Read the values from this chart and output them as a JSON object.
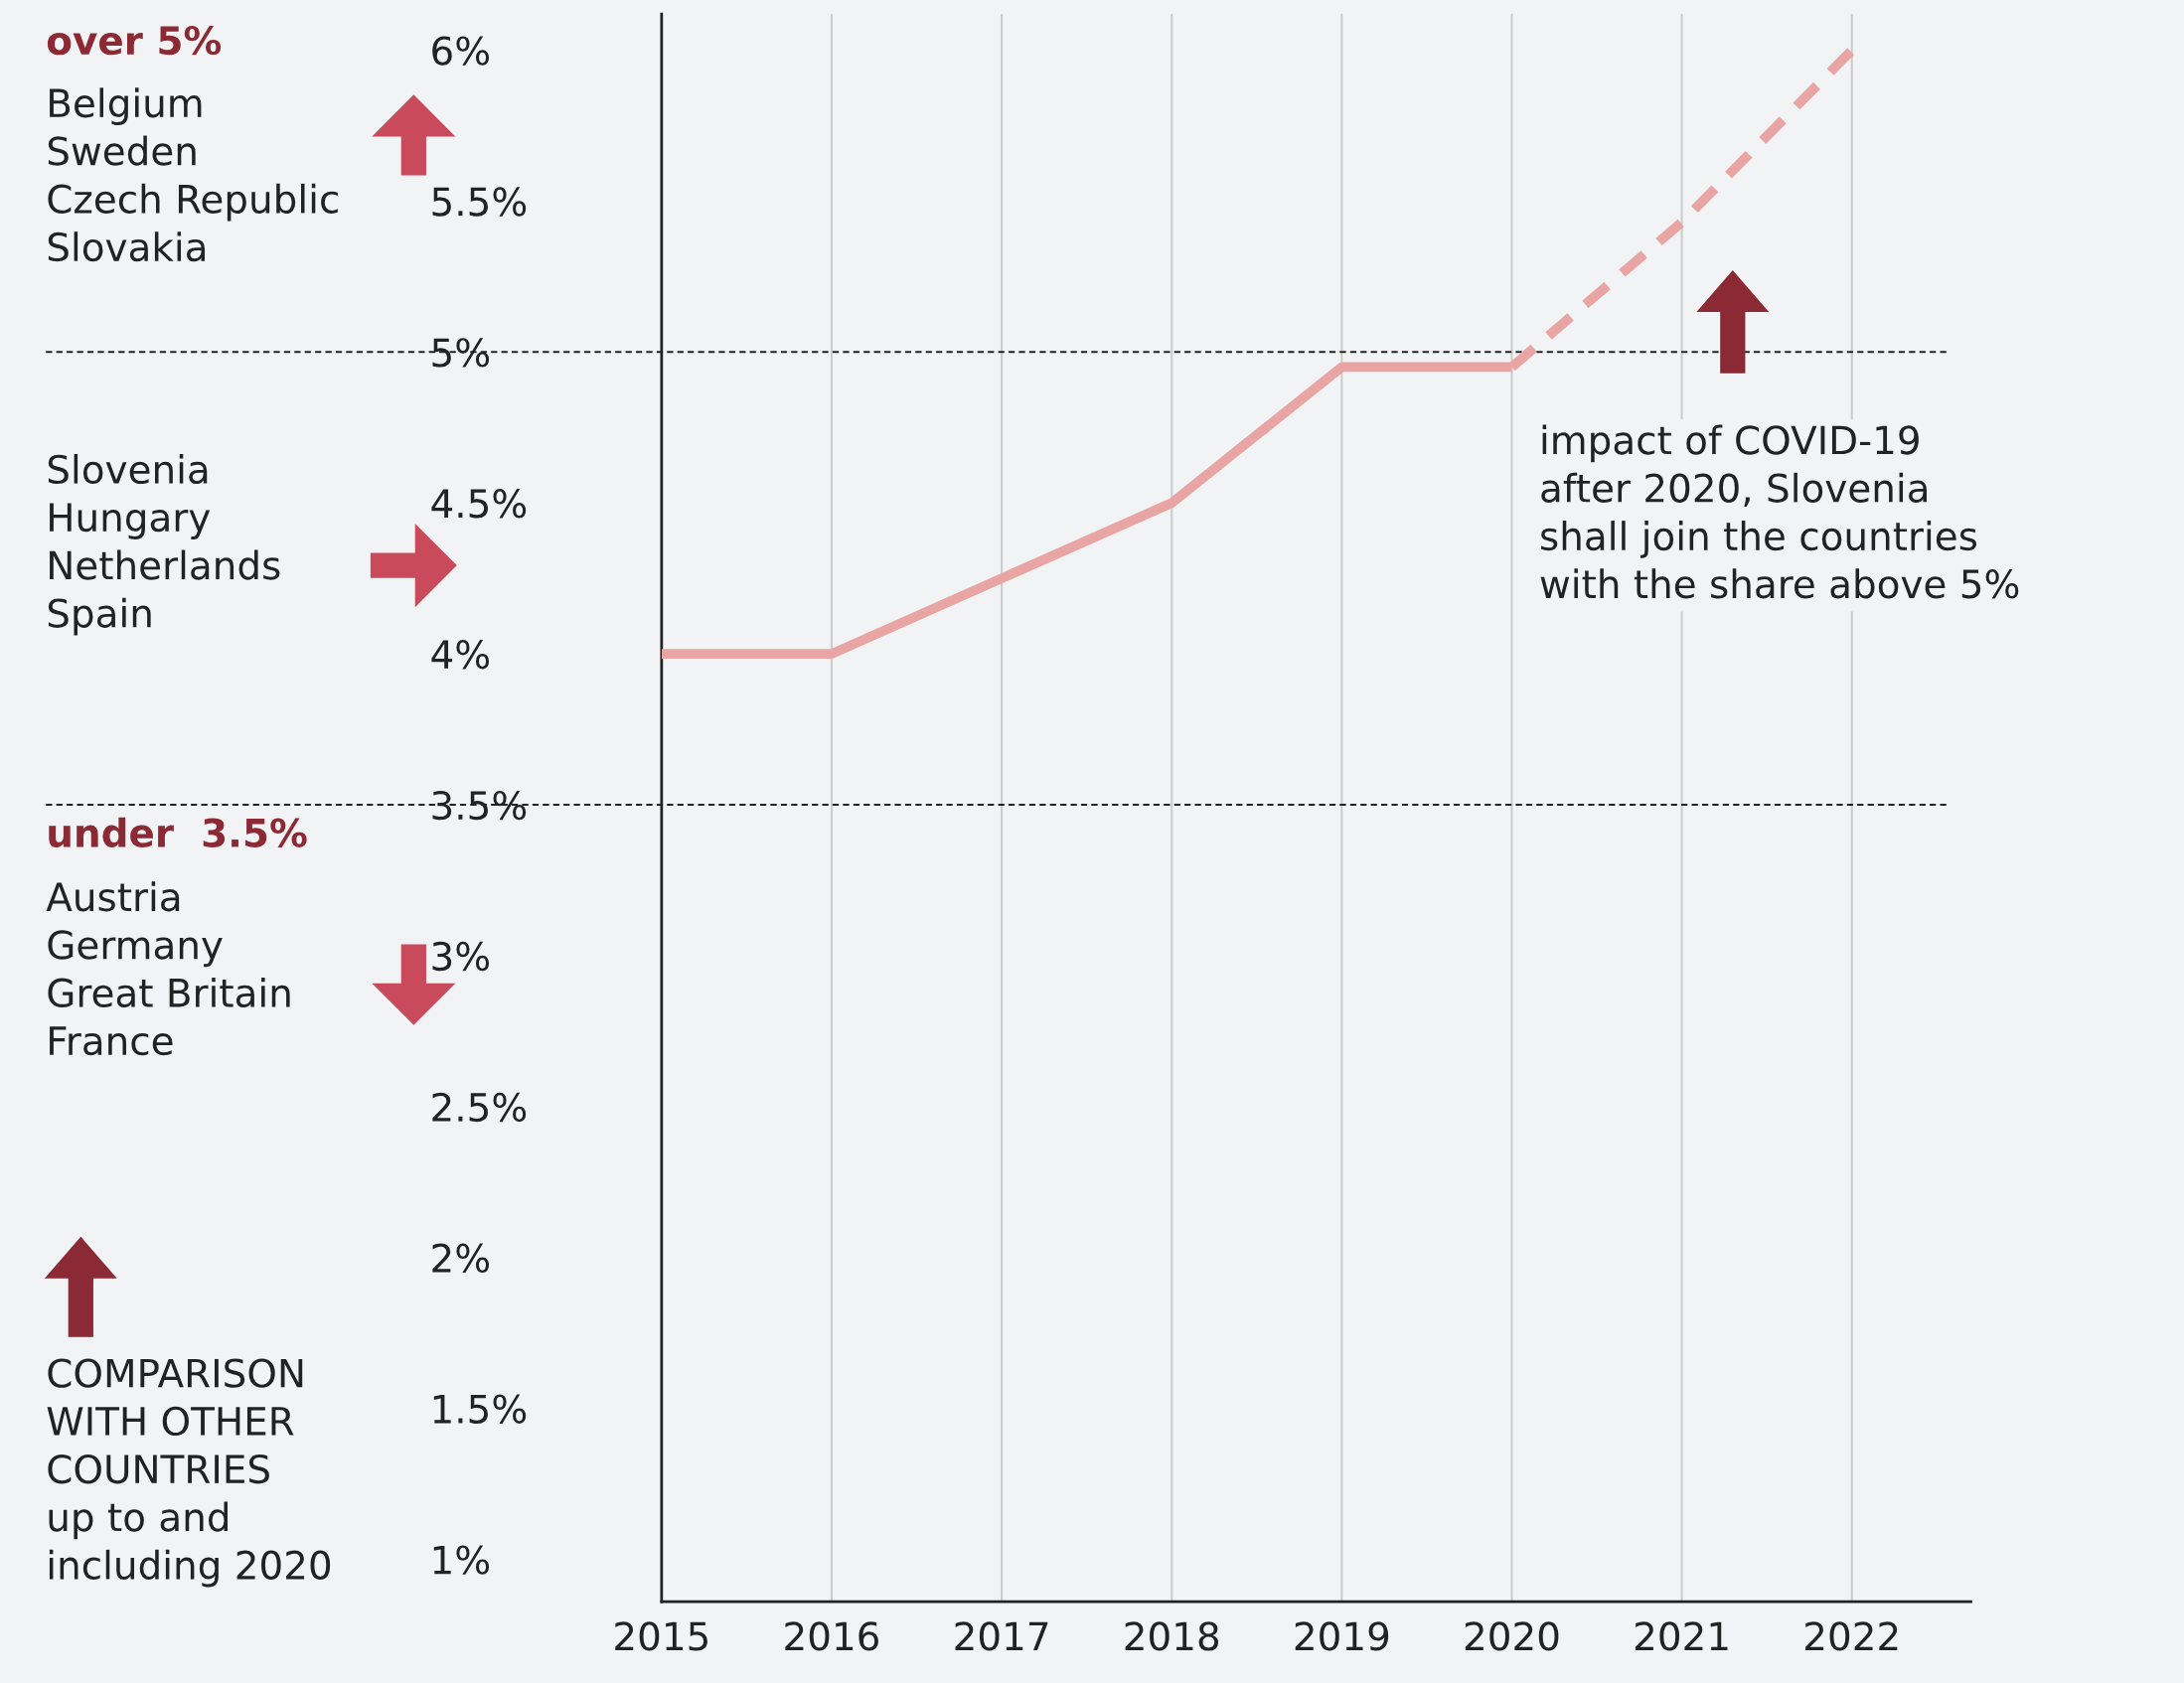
{
  "chart_data": {
    "type": "line",
    "series": [
      {
        "x": [
          2015,
          2016,
          2017,
          2018,
          2019,
          2020
        ],
        "values": [
          4.0,
          4.0,
          4.25,
          4.5,
          4.95,
          4.95
        ],
        "color": "#e8a5a3",
        "line_style": "solid"
      },
      {
        "x": [
          2020,
          2021,
          2022
        ],
        "values": [
          4.95,
          5.43,
          6.0
        ],
        "color": "#e8a5a3",
        "line_style": "dashed"
      }
    ],
    "xlim": [
      2015,
      2022.7
    ],
    "xticks": [
      2015,
      2016,
      2017,
      2018,
      2019,
      2020,
      2021,
      2022
    ],
    "ylim": [
      0.86,
      6.12
    ],
    "yticks": [
      {
        "value": 1,
        "label": "1%"
      },
      {
        "value": 1.5,
        "label": "1.5%"
      },
      {
        "value": 2,
        "label": "2%"
      },
      {
        "value": 2.5,
        "label": "2.5%"
      },
      {
        "value": 3,
        "label": "3%"
      },
      {
        "value": 3.5,
        "label": "3.5%"
      },
      {
        "value": 4,
        "label": "4%"
      },
      {
        "value": 4.5,
        "label": "4.5%"
      },
      {
        "value": 5,
        "label": "5%"
      },
      {
        "value": 5.5,
        "label": "5.5%"
      },
      {
        "value": 6,
        "label": "6%"
      }
    ],
    "grid": "x",
    "marker": "none",
    "ref_lines": [
      {
        "axis": "y",
        "value": 5,
        "color": "#222222",
        "line_style": "dashed"
      },
      {
        "axis": "y",
        "value": 3.5,
        "color": "#222222",
        "line_style": "dashed"
      }
    ],
    "annotations": [
      "over 5%",
      "Belgium\nSweden\nCzech Republic\nSlovakia",
      "Slovenia\nHungary\nNetherlands\nSpain",
      "under  3.5%",
      "Austria\nGermany\nGreat Britain\nFrance",
      "COMPARISON\nWITH OTHER\nCOUNTRIES\nup to and\nincluding 2020",
      "impact of COVID-19\nafter 2020, Slovenia\nshall join the countries\nwith the share above 5%"
    ]
  }
}
